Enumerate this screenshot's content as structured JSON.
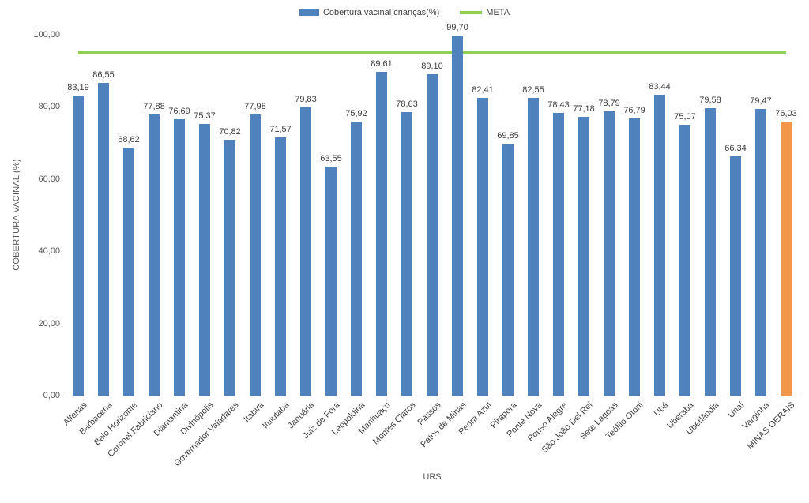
{
  "legend": {
    "series_label": "Cobertura vacinal crianças(%)",
    "meta_label": "META"
  },
  "axes": {
    "y_title": "COBERTURA VACINAL (%)",
    "x_title": "URS"
  },
  "colors": {
    "bar": "#4F81BD",
    "highlight_bar": "#F2964A",
    "meta_line": "#92D050",
    "axis_line": "#D9D9D9",
    "tick_text": "#595959",
    "label_text": "#3B3B3B"
  },
  "chart_data": {
    "type": "bar",
    "title": "",
    "xlabel": "URS",
    "ylabel": "COBERTURA VACINAL (%)",
    "ylim": [
      0,
      100
    ],
    "grid": false,
    "legend_position": "top",
    "yticks": [
      {
        "value": 0,
        "label": "0,00"
      },
      {
        "value": 20,
        "label": "20,00"
      },
      {
        "value": 40,
        "label": "40,00"
      },
      {
        "value": 60,
        "label": "60,00"
      },
      {
        "value": 80,
        "label": "80,00"
      },
      {
        "value": 100,
        "label": "100,00"
      }
    ],
    "categories": [
      "Alfenas",
      "Barbacena",
      "Belo Horizonte",
      "Coronel Fabriciano",
      "Diamantina",
      "Divinópolis",
      "Governador Valadares",
      "Itabira",
      "Ituiutaba",
      "Januária",
      "Juiz de Fora",
      "Leopoldina",
      "Manhuaçu",
      "Montes Claros",
      "Passos",
      "Patos de Minas",
      "Pedra Azul",
      "Pirapora",
      "Ponte Nova",
      "Pouso Alegre",
      "São João Del Rei",
      "Sete Lagoas",
      "Teófilo Otoni",
      "Ubá",
      "Uberaba",
      "Uberlândia",
      "Unaí",
      "Varginha",
      "MINAS GERAIS"
    ],
    "series": [
      {
        "name": "Cobertura vacinal crianças(%)",
        "values": [
          83.19,
          86.55,
          68.62,
          77.88,
          76.69,
          75.37,
          70.82,
          77.98,
          71.57,
          79.83,
          63.55,
          75.92,
          89.61,
          78.63,
          89.1,
          99.7,
          82.41,
          69.85,
          82.55,
          78.43,
          77.18,
          78.79,
          76.79,
          83.44,
          75.07,
          79.58,
          66.34,
          79.47,
          76.03
        ]
      }
    ],
    "value_labels": [
      "83,19",
      "86,55",
      "68,62",
      "77,88",
      "76,69",
      "75,37",
      "70,82",
      "77,98",
      "71,57",
      "79,83",
      "63,55",
      "75,92",
      "89,61",
      "78,63",
      "89,10",
      "99,70",
      "82,41",
      "69,85",
      "82,55",
      "78,43",
      "77,18",
      "78,79",
      "76,79",
      "83,44",
      "75,07",
      "79,58",
      "66,34",
      "79,47",
      "76,03"
    ],
    "meta": {
      "name": "META",
      "value": 95
    },
    "highlight_category": "MINAS GERAIS",
    "highlight_index": 28
  }
}
